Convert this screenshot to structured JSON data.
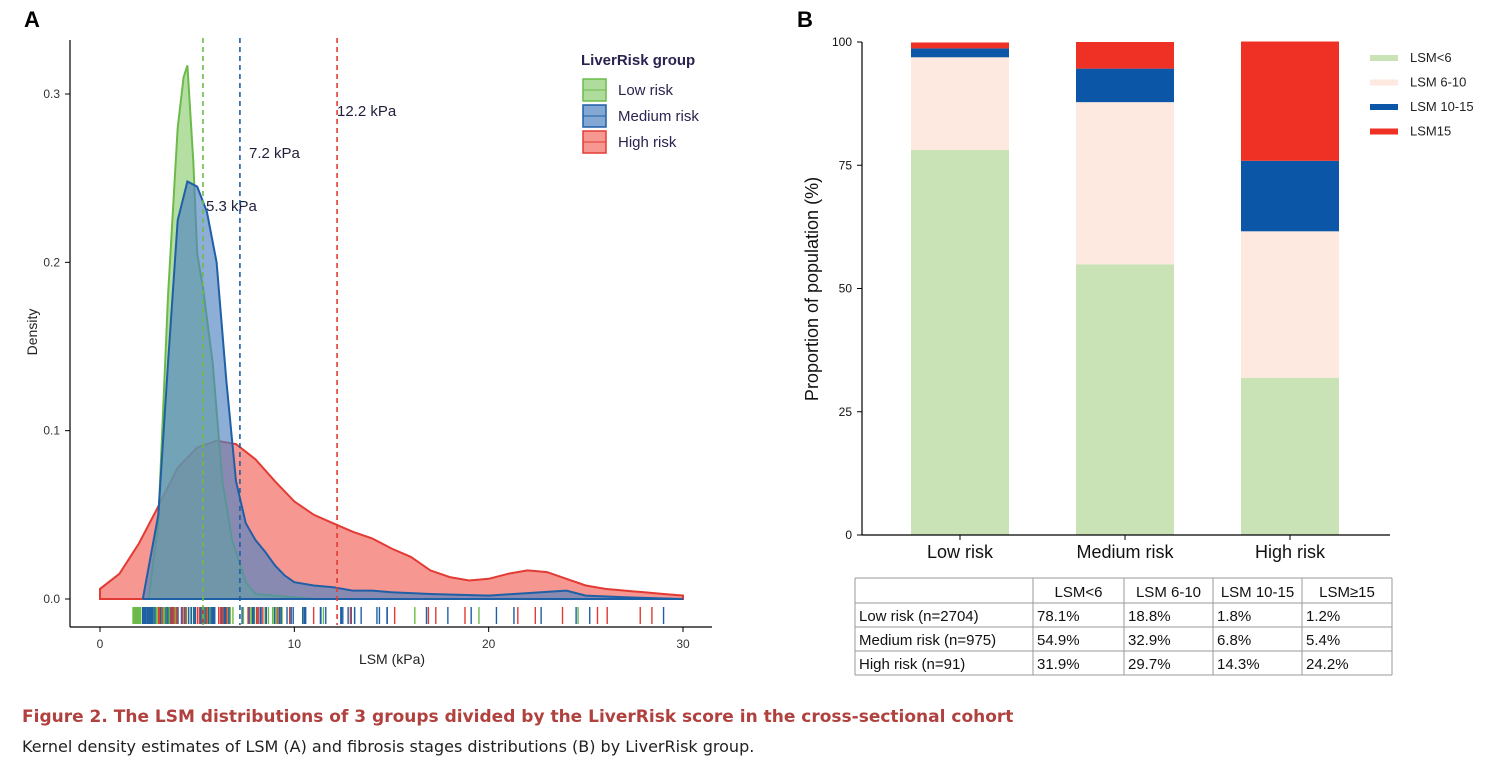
{
  "figure": {
    "caption_title": "Figure 2.  The LSM distributions of 3 groups divided by the LiverRisk score in the cross-sectional cohort",
    "caption_text": "Kernel density estimates of LSM (A) and fibrosis stages distributions (B) by LiverRisk group."
  },
  "colors": {
    "low": "#6cbb4a",
    "low_fill": "#8dcd72",
    "medium": "#1f5fa6",
    "medium_fill": "#4f83c2",
    "high": "#e23b33",
    "high_fill": "#f26b64",
    "bar_lsm6": "#c9e3b6",
    "bar_lsm6_10": "#fde9df",
    "bar_lsm10_15": "#0b56a6",
    "bar_lsm15": "#ee3124",
    "text_dark": "#1f1f3a"
  },
  "chart_data": [
    {
      "panel": "A",
      "type": "area",
      "title": "",
      "xlabel": "LSM (kPa)",
      "ylabel": "Density",
      "xlim": [
        0,
        30
      ],
      "ylim": [
        0,
        0.32
      ],
      "xticks": [
        "0",
        "10",
        "20",
        "30"
      ],
      "yticks": [
        "0.0",
        "0.1",
        "0.2",
        "0.3"
      ],
      "legend_title": "LiverRisk group",
      "legend_position": "top-right",
      "series": [
        {
          "name": "Low risk",
          "key": "low",
          "median_label": "5.3 kPa",
          "median": 5.3,
          "points": [
            [
              2.5,
              0
            ],
            [
              3.0,
              0.045
            ],
            [
              3.5,
              0.18
            ],
            [
              4.0,
              0.28
            ],
            [
              4.3,
              0.31
            ],
            [
              4.5,
              0.317
            ],
            [
              4.8,
              0.26
            ],
            [
              5.0,
              0.205
            ],
            [
              5.3,
              0.185
            ],
            [
              5.8,
              0.14
            ],
            [
              6.3,
              0.07
            ],
            [
              6.8,
              0.035
            ],
            [
              7.5,
              0.01
            ],
            [
              8.0,
              0.003
            ],
            [
              9,
              0.002
            ],
            [
              10,
              0.001
            ],
            [
              11,
              0
            ]
          ]
        },
        {
          "name": "Medium risk",
          "key": "medium",
          "median_label": "7.2 kPa",
          "median": 7.2,
          "points": [
            [
              2.2,
              0
            ],
            [
              3.0,
              0.05
            ],
            [
              3.5,
              0.14
            ],
            [
              4.0,
              0.225
            ],
            [
              4.5,
              0.248
            ],
            [
              5.0,
              0.245
            ],
            [
              5.5,
              0.23
            ],
            [
              6.0,
              0.2
            ],
            [
              6.5,
              0.13
            ],
            [
              7.0,
              0.07
            ],
            [
              7.5,
              0.045
            ],
            [
              8.0,
              0.035
            ],
            [
              8.5,
              0.028
            ],
            [
              9.0,
              0.02
            ],
            [
              9.5,
              0.014
            ],
            [
              10.0,
              0.01
            ],
            [
              11,
              0.008
            ],
            [
              12,
              0.007
            ],
            [
              13,
              0.005
            ],
            [
              14,
              0.005
            ],
            [
              15,
              0.004
            ],
            [
              17,
              0.003
            ],
            [
              20,
              0.002
            ],
            [
              24,
              0.005
            ],
            [
              25,
              0.002
            ],
            [
              27,
              0.001
            ],
            [
              30,
              0
            ]
          ]
        },
        {
          "name": "High risk",
          "key": "high",
          "median_label": "12.2 kPa",
          "median": 12.2,
          "points": [
            [
              0,
              0.006
            ],
            [
              1,
              0.015
            ],
            [
              2,
              0.033
            ],
            [
              3,
              0.055
            ],
            [
              4,
              0.078
            ],
            [
              5,
              0.09
            ],
            [
              6,
              0.094
            ],
            [
              7,
              0.092
            ],
            [
              8,
              0.083
            ],
            [
              9,
              0.07
            ],
            [
              10,
              0.058
            ],
            [
              11,
              0.05
            ],
            [
              12,
              0.045
            ],
            [
              13,
              0.04
            ],
            [
              14,
              0.036
            ],
            [
              15,
              0.03
            ],
            [
              16,
              0.025
            ],
            [
              17,
              0.017
            ],
            [
              18,
              0.013
            ],
            [
              19,
              0.011
            ],
            [
              20,
              0.012
            ],
            [
              21,
              0.015
            ],
            [
              22,
              0.017
            ],
            [
              23,
              0.016
            ],
            [
              24,
              0.012
            ],
            [
              25,
              0.008
            ],
            [
              26,
              0.006
            ],
            [
              27,
              0.005
            ],
            [
              28,
              0.004
            ],
            [
              29,
              0.003
            ],
            [
              30,
              0.002
            ]
          ]
        }
      ]
    },
    {
      "panel": "B",
      "type": "bar",
      "stacked": true,
      "title": "",
      "xlabel": "",
      "ylabel": "Proportion of population (%)",
      "ylim": [
        0,
        100
      ],
      "yticks": [
        "0",
        "25",
        "50",
        "75",
        "100"
      ],
      "categories": [
        "Low risk",
        "Medium risk",
        "High risk"
      ],
      "legend_position": "top-right",
      "series": [
        {
          "name": "LSM<6",
          "key": "bar_lsm6",
          "values": [
            78.1,
            54.9,
            31.9
          ]
        },
        {
          "name": "LSM 6-10",
          "key": "bar_lsm6_10",
          "values": [
            18.8,
            32.9,
            29.7
          ]
        },
        {
          "name": "LSM 10-15",
          "key": "bar_lsm10_15",
          "values": [
            1.8,
            6.8,
            14.3
          ]
        },
        {
          "name": "LSM15",
          "key": "bar_lsm15",
          "values": [
            1.2,
            5.4,
            24.2
          ]
        }
      ],
      "table": {
        "headers": [
          "",
          "LSM<6",
          "LSM 6-10",
          "LSM 10-15",
          "LSM≥15"
        ],
        "rows": [
          [
            "Low risk (n=2704)",
            "78.1%",
            "18.8%",
            "1.8%",
            "1.2%"
          ],
          [
            "Medium risk (n=975)",
            "54.9%",
            "32.9%",
            "6.8%",
            "5.4%"
          ],
          [
            "High risk (n=91)",
            "31.9%",
            "29.7%",
            "14.3%",
            "24.2%"
          ]
        ]
      }
    }
  ],
  "panel_labels": [
    "A",
    "B"
  ]
}
